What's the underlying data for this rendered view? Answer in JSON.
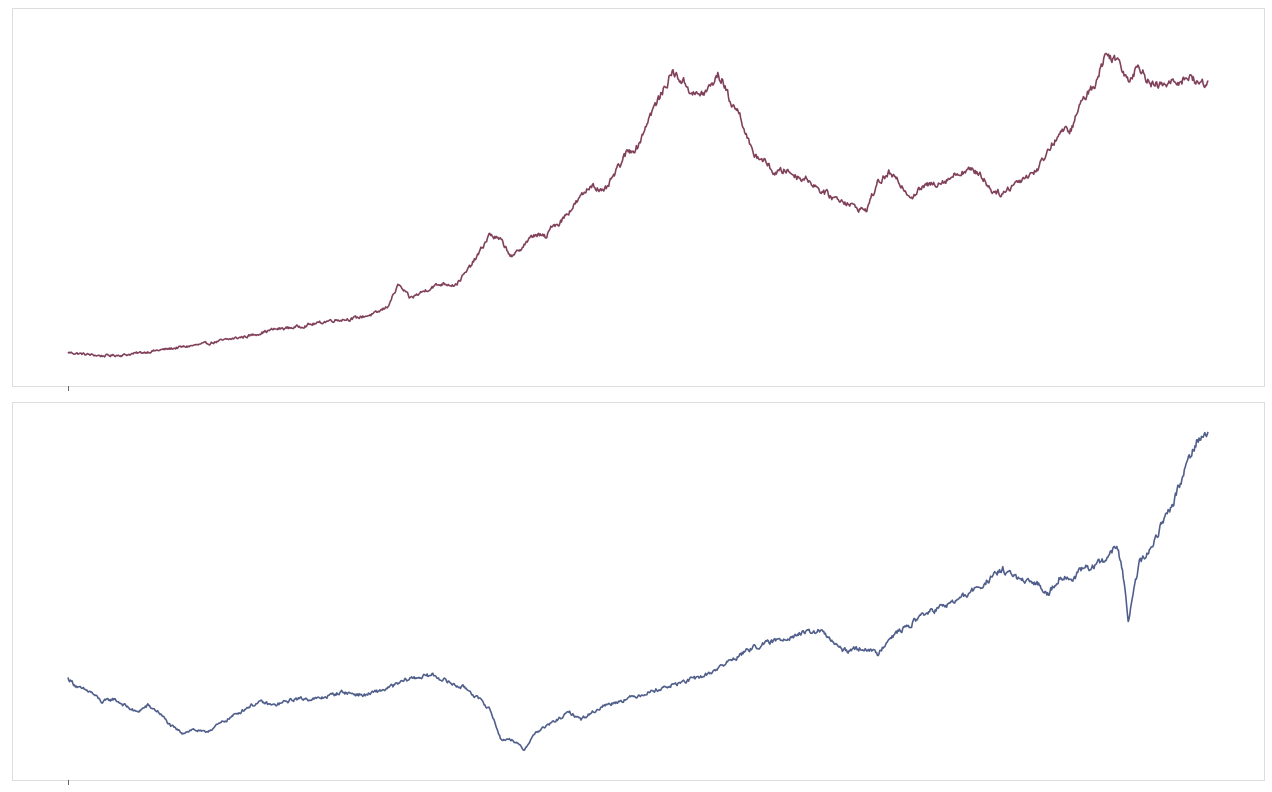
{
  "chart_data": [
    {
      "type": "line",
      "title": "",
      "xlabel": "",
      "ylabel": "",
      "x_tick_labels": [
        ""
      ],
      "grid": false,
      "legend": "none",
      "x_range": [
        0,
        100
      ],
      "ylim": [
        0,
        100
      ],
      "colors": {
        "line": "#80405a",
        "frame": "#dddddd",
        "tick": "#666666"
      },
      "series": [
        {
          "x": [
            0,
            2,
            3,
            5,
            7,
            10,
            12,
            14,
            16,
            18,
            20,
            22,
            23,
            25,
            27,
            28,
            29,
            30,
            32,
            33,
            34,
            35,
            36,
            37,
            38,
            39,
            40,
            41,
            42,
            42.5,
            43,
            45,
            46,
            47,
            48,
            49,
            50,
            51,
            52,
            53,
            54,
            55,
            56,
            57,
            57.5,
            58,
            59,
            60,
            61,
            62,
            63,
            64,
            65,
            66,
            67,
            68,
            69,
            70,
            71,
            72,
            73,
            74,
            75,
            76,
            77,
            78,
            79,
            80,
            81,
            82,
            83,
            84,
            85,
            86,
            87,
            88,
            89,
            90,
            91,
            92,
            93,
            94,
            95,
            96,
            97,
            98,
            98.5,
            99,
            100
          ],
          "values": [
            4.0,
            3.3,
            3.0,
            3.3,
            4.2,
            5.6,
            6.5,
            7.8,
            9.0,
            10.8,
            11.5,
            12.7,
            13.5,
            14.0,
            15.5,
            17.5,
            24.0,
            20.0,
            23.5,
            24.5,
            24.0,
            28.0,
            33.0,
            39.0,
            37.0,
            32.0,
            36.0,
            39.0,
            38.0,
            42.0,
            42.0,
            50.0,
            54.0,
            51.0,
            57.0,
            63.0,
            65.0,
            74.0,
            80.0,
            87.0,
            84.0,
            80.0,
            81.0,
            86.0,
            84.0,
            79.0,
            74.0,
            63.0,
            61.0,
            57.0,
            58.0,
            56.0,
            55.0,
            52.0,
            50.0,
            49.0,
            47.0,
            46.0,
            54.0,
            57.0,
            54.0,
            50.0,
            53.0,
            54.0,
            55.0,
            57.0,
            58.0,
            57.0,
            52.0,
            51.0,
            54.0,
            56.0,
            58.0,
            64.0,
            69.0,
            70.0,
            79.0,
            83.0,
            92.0,
            91.0,
            85.0,
            89.0,
            83.0,
            83.0,
            84.0,
            85.0,
            86.0,
            83.5,
            84.0
          ]
        }
      ]
    },
    {
      "type": "line",
      "title": "",
      "xlabel": "",
      "ylabel": "",
      "x_tick_labels": [
        ""
      ],
      "grid": false,
      "legend": "none",
      "x_range": [
        0,
        100
      ],
      "ylim": [
        0,
        100
      ],
      "colors": {
        "line": "#4f5e8a",
        "frame": "#dddddd",
        "tick": "#666666"
      },
      "series": [
        {
          "x": [
            0,
            1,
            2,
            3,
            4,
            5,
            6,
            7,
            8,
            9,
            10,
            11,
            12,
            13,
            14,
            15,
            16,
            17,
            18,
            19,
            20,
            22,
            24,
            26,
            28,
            30,
            32,
            34,
            35,
            36,
            37,
            38,
            39,
            40,
            41,
            42,
            43,
            44,
            45,
            46,
            47,
            48,
            50,
            52,
            54,
            56,
            58,
            60,
            62,
            64,
            66,
            68,
            70,
            71,
            72,
            73,
            74,
            75,
            76,
            78,
            80,
            82,
            83,
            84,
            85,
            86,
            87,
            88,
            89,
            90,
            91,
            92,
            92.5,
            93,
            94,
            95,
            96,
            97,
            98,
            99,
            100
          ],
          "values": [
            24.0,
            21.0,
            20.0,
            17.0,
            18.0,
            16.0,
            14.0,
            16.0,
            14.0,
            10.0,
            8.0,
            9.0,
            8.0,
            10.0,
            12.0,
            14.0,
            16.0,
            17.0,
            16.0,
            17.0,
            18.0,
            18.0,
            20.0,
            19.0,
            21.0,
            24.0,
            25.0,
            22.0,
            21.0,
            18.0,
            15.0,
            6.0,
            6.0,
            3.0,
            8.0,
            10.0,
            12.0,
            14.0,
            12.0,
            14.0,
            16.0,
            17.0,
            19.0,
            21.0,
            23.0,
            25.0,
            29.0,
            33.0,
            35.0,
            37.0,
            38.0,
            32.0,
            33.0,
            31.0,
            36.0,
            38.0,
            40.0,
            43.0,
            44.0,
            47.0,
            51.0,
            56.0,
            54.0,
            52.0,
            52.0,
            49.0,
            54.0,
            53.0,
            56.0,
            57.0,
            59.0,
            63.0,
            56.0,
            41.0,
            58.0,
            62.0,
            70.0,
            76.0,
            86.0,
            94.0,
            96.0
          ]
        }
      ]
    }
  ]
}
